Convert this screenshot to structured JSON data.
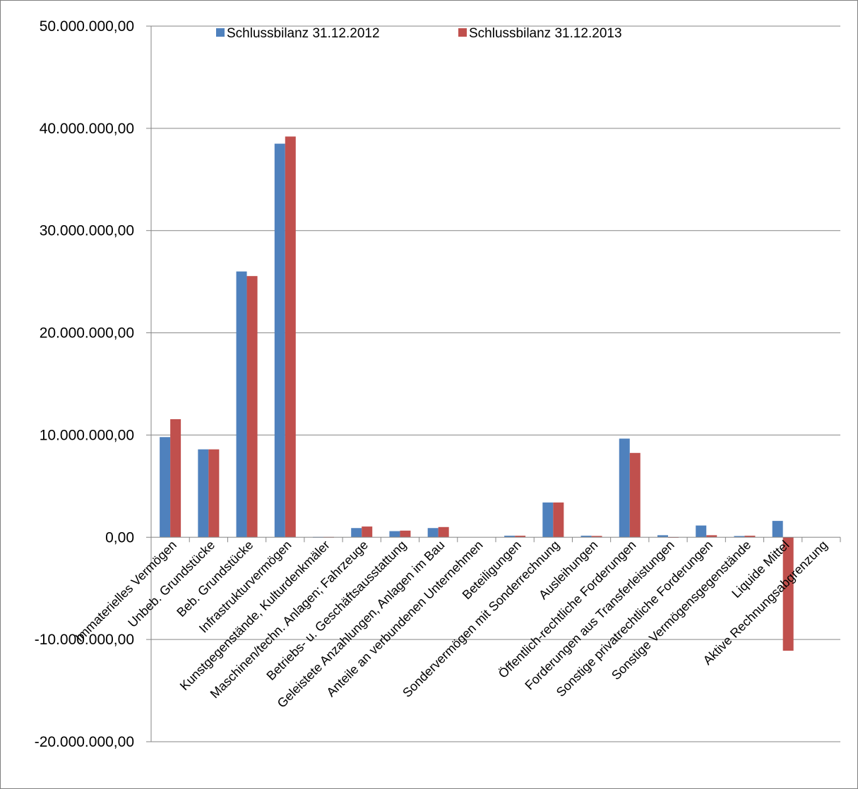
{
  "chart_data": {
    "type": "bar",
    "title": "",
    "xlabel": "",
    "ylabel": "",
    "ylim": [
      -20000000,
      50000000
    ],
    "yticks": [
      -20000000,
      -10000000,
      0,
      10000000,
      20000000,
      30000000,
      40000000,
      50000000
    ],
    "ytick_labels": [
      "-20.000.000,00",
      "-10.000.000,00",
      "0,00",
      "10.000.000,00",
      "20.000.000,00",
      "30.000.000,00",
      "40.000.000,00",
      "50.000.000,00"
    ],
    "grid": true,
    "legend_position": "top",
    "categories": [
      "Immaterielles Vermögen",
      "Unbeb. Grundstücke",
      "Beb. Grundstücke",
      "Infrastrukturvermögen",
      "Kunstgegenstände, Kulturdenkmäler",
      "Maschinen/techn. Anlagen; Fahrzeuge",
      "Betriebs- u. Geschäftsausstattung",
      "Geleistete Anzahlungen, Anlagen im Bau",
      "Anteile an verbundenen Unternehmen",
      "Beteiligungen",
      "Sondervermögen mit Sonderrechnung",
      "Ausleihungen",
      "Öffentlich-rechtliche Forderungen",
      "Forderungen aus Transferleistungen",
      "Sonstige privatrechtliche Forderungen",
      "Sonstige Vermögensgegenstände",
      "Liquide Mittel",
      "Aktive Rechnungsabgrenzung"
    ],
    "series": [
      {
        "name": "Schlussbilanz 31.12.2012",
        "color": "#4f81bd",
        "values": [
          9800000,
          8600000,
          26000000,
          38500000,
          30000,
          900000,
          600000,
          900000,
          0,
          150000,
          3400000,
          150000,
          9650000,
          200000,
          1150000,
          120000,
          1600000,
          0
        ]
      },
      {
        "name": "Schlussbilanz 31.12.2013",
        "color": "#c0504d",
        "values": [
          11550000,
          8600000,
          25550000,
          39200000,
          30000,
          1050000,
          650000,
          1000000,
          0,
          150000,
          3400000,
          130000,
          8250000,
          20000,
          200000,
          150000,
          -11100000,
          0
        ]
      }
    ]
  }
}
